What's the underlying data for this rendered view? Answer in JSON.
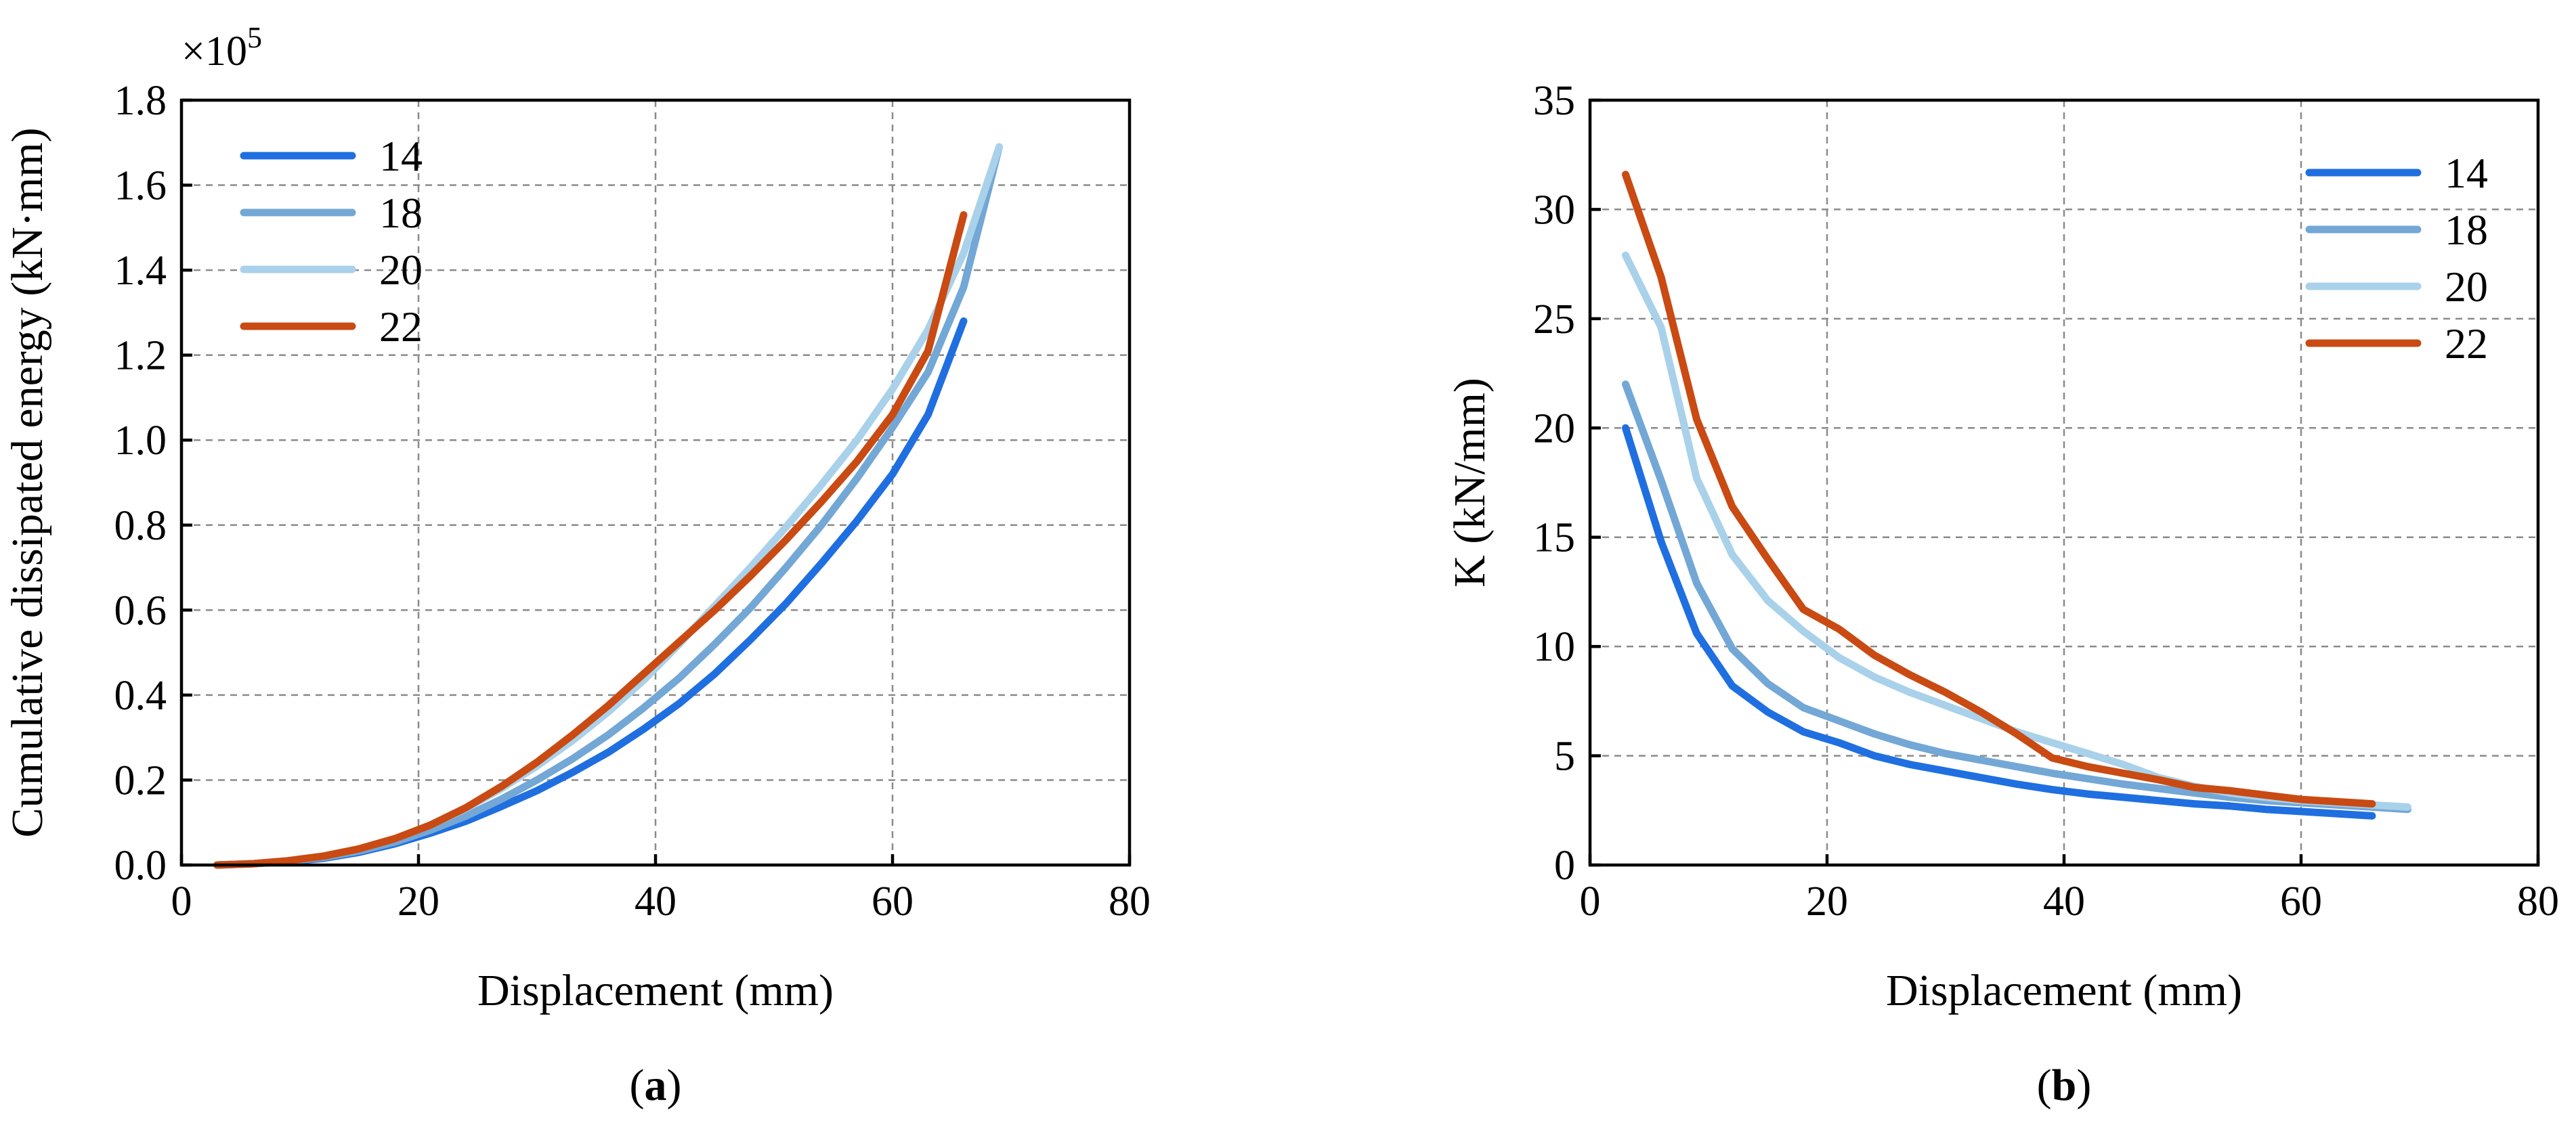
{
  "chart_data": [
    {
      "id": "a",
      "type": "line",
      "caption_letter": "a",
      "xlabel": "Displacement (mm)",
      "ylabel": "Cumulative dissipated energy (kN·mm)",
      "y_multiplier_label": "×10",
      "y_multiplier_exp": "5",
      "xlim": [
        0,
        80
      ],
      "ylim": [
        0,
        1.8
      ],
      "xticks": [
        0,
        20,
        40,
        60,
        80
      ],
      "yticks": [
        0.0,
        0.2,
        0.4,
        0.6,
        0.8,
        1.0,
        1.2,
        1.4,
        1.6,
        1.8
      ],
      "ytick_labels": [
        "0.0",
        "0.2",
        "0.4",
        "0.6",
        "0.8",
        "1.0",
        "1.2",
        "1.4",
        "1.6",
        "1.8"
      ],
      "grid": true,
      "legend_position": "top-left",
      "series": [
        {
          "name": "14",
          "color": "#1f6fe0",
          "x": [
            3,
            6,
            9,
            12,
            15,
            18,
            21,
            24,
            27,
            30,
            33,
            36,
            39,
            42,
            45,
            48,
            51,
            54,
            57,
            60,
            63,
            66
          ],
          "y": [
            0.0,
            0.003,
            0.008,
            0.016,
            0.03,
            0.05,
            0.075,
            0.103,
            0.138,
            0.175,
            0.218,
            0.265,
            0.32,
            0.38,
            0.45,
            0.53,
            0.615,
            0.71,
            0.81,
            0.92,
            1.06,
            1.28
          ]
        },
        {
          "name": "18",
          "color": "#73a7d6",
          "x": [
            3,
            6,
            9,
            12,
            15,
            18,
            21,
            24,
            27,
            30,
            33,
            36,
            39,
            42,
            45,
            48,
            51,
            54,
            57,
            60,
            63,
            66,
            69
          ],
          "y": [
            0.0,
            0.003,
            0.009,
            0.018,
            0.033,
            0.054,
            0.082,
            0.115,
            0.155,
            0.2,
            0.25,
            0.306,
            0.37,
            0.44,
            0.52,
            0.605,
            0.7,
            0.8,
            0.91,
            1.03,
            1.16,
            1.36,
            1.69
          ]
        },
        {
          "name": "20",
          "color": "#a9d1ea",
          "x": [
            3,
            6,
            9,
            12,
            15,
            18,
            21,
            24,
            27,
            30,
            33,
            36,
            39,
            42,
            45,
            48,
            51,
            54,
            57,
            60,
            63,
            66,
            69
          ],
          "y": [
            0.0,
            0.003,
            0.01,
            0.021,
            0.038,
            0.062,
            0.094,
            0.133,
            0.18,
            0.233,
            0.293,
            0.36,
            0.435,
            0.52,
            0.61,
            0.7,
            0.795,
            0.895,
            1.0,
            1.12,
            1.26,
            1.44,
            1.69
          ]
        },
        {
          "name": "22",
          "color": "#c94a12",
          "x": [
            3,
            6,
            9,
            12,
            15,
            18,
            21,
            24,
            27,
            30,
            33,
            36,
            39,
            42,
            45,
            48,
            51,
            54,
            57,
            60,
            63,
            66
          ],
          "y": [
            0.0,
            0.003,
            0.01,
            0.021,
            0.038,
            0.062,
            0.094,
            0.135,
            0.185,
            0.242,
            0.306,
            0.375,
            0.45,
            0.525,
            0.6,
            0.68,
            0.765,
            0.855,
            0.95,
            1.06,
            1.21,
            1.53
          ]
        }
      ]
    },
    {
      "id": "b",
      "type": "line",
      "caption_letter": "b",
      "xlabel": "Displacement (mm)",
      "ylabel": "K (kN/mm)",
      "xlim": [
        0,
        80
      ],
      "ylim": [
        0,
        35
      ],
      "xticks": [
        0,
        20,
        40,
        60,
        80
      ],
      "yticks": [
        0,
        5,
        10,
        15,
        20,
        25,
        30,
        35
      ],
      "ytick_labels": [
        "0",
        "5",
        "10",
        "15",
        "20",
        "25",
        "30",
        "35"
      ],
      "grid": true,
      "legend_position": "top-right",
      "series": [
        {
          "name": "14",
          "color": "#1f6fe0",
          "x": [
            3,
            6,
            9,
            12,
            15,
            18,
            21,
            24,
            27,
            30,
            33,
            36,
            39,
            42,
            45,
            48,
            51,
            54,
            57,
            60,
            63,
            66
          ],
          "y": [
            20.0,
            14.8,
            10.6,
            8.2,
            7.0,
            6.1,
            5.6,
            5.0,
            4.6,
            4.3,
            4.0,
            3.7,
            3.45,
            3.25,
            3.1,
            2.95,
            2.8,
            2.7,
            2.55,
            2.45,
            2.35,
            2.25
          ]
        },
        {
          "name": "18",
          "color": "#73a7d6",
          "x": [
            3,
            6,
            9,
            12,
            15,
            18,
            21,
            24,
            27,
            30,
            33,
            36,
            39,
            42,
            45,
            48,
            51,
            54,
            57,
            60,
            63,
            66,
            69
          ],
          "y": [
            22.0,
            17.6,
            12.9,
            9.9,
            8.3,
            7.2,
            6.6,
            6.0,
            5.5,
            5.1,
            4.8,
            4.5,
            4.2,
            3.95,
            3.7,
            3.5,
            3.3,
            3.1,
            2.95,
            2.85,
            2.75,
            2.65,
            2.55
          ]
        },
        {
          "name": "20",
          "color": "#a9d1ea",
          "x": [
            3,
            6,
            9,
            12,
            15,
            18,
            21,
            24,
            27,
            30,
            33,
            36,
            39,
            42,
            45,
            48,
            51,
            54,
            57,
            60,
            63,
            66,
            69
          ],
          "y": [
            27.9,
            24.6,
            17.7,
            14.2,
            12.1,
            10.7,
            9.5,
            8.6,
            7.9,
            7.3,
            6.7,
            6.1,
            5.6,
            5.1,
            4.6,
            4.0,
            3.6,
            3.3,
            3.1,
            2.95,
            2.85,
            2.75,
            2.65
          ]
        },
        {
          "name": "22",
          "color": "#c94a12",
          "x": [
            3,
            6,
            9,
            12,
            15,
            18,
            21,
            24,
            27,
            30,
            33,
            36,
            39,
            42,
            45,
            48,
            51,
            54,
            57,
            60,
            63,
            66
          ],
          "y": [
            31.6,
            26.9,
            20.4,
            16.4,
            14.0,
            11.7,
            10.8,
            9.6,
            8.7,
            7.9,
            7.0,
            6.0,
            4.9,
            4.5,
            4.2,
            3.9,
            3.55,
            3.4,
            3.2,
            3.0,
            2.9,
            2.8
          ]
        }
      ]
    }
  ]
}
